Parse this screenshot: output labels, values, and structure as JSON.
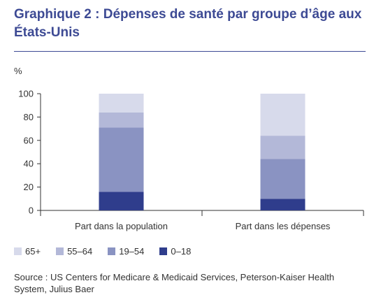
{
  "title": "Graphique 2 : Dépenses de santé par groupe d’âge aux États-Unis",
  "source": "Source : US Centers for Medicare & Medicaid Services, Peterson-Kaiser Health System, Julius Baer",
  "chart_data": {
    "type": "bar",
    "stacked": true,
    "ylabel": "%",
    "ylim": [
      0,
      100
    ],
    "yticks": [
      0,
      20,
      40,
      60,
      80,
      100
    ],
    "categories": [
      "Part dans la population",
      "Part dans les dépenses"
    ],
    "series": [
      {
        "name": "0–18",
        "color": "#2f3d8c",
        "values": [
          16,
          10
        ]
      },
      {
        "name": "19–54",
        "color": "#8a93c2",
        "values": [
          55,
          34
        ]
      },
      {
        "name": "55–64",
        "color": "#b3b8d8",
        "values": [
          13,
          20
        ]
      },
      {
        "name": "65+",
        "color": "#d7daeb",
        "values": [
          16,
          36
        ]
      }
    ],
    "legend_order": [
      "65+",
      "55–64",
      "19–54",
      "0–18"
    ],
    "legend": "bottom",
    "grid": false
  }
}
